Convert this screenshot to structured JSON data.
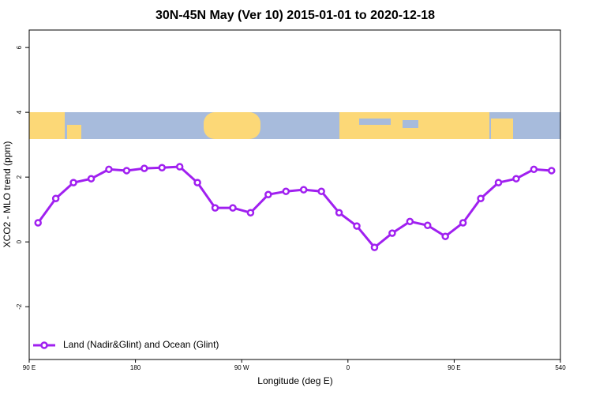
{
  "chart_data": {
    "type": "line",
    "title": "30N-45N May (Ver 10)   2015-01-01 to 2020-12-18",
    "x_label": "Longitude (deg E)",
    "y_label": "XCO2 - MLO trend (ppm)",
    "x": [
      97.5,
      112.5,
      127.5,
      142.5,
      157.5,
      172.5,
      187.5,
      202.5,
      217.5,
      232.5,
      247.5,
      262.5,
      277.5,
      292.5,
      307.5,
      322.5,
      337.5,
      352.5,
      367.5,
      382.5,
      397.5,
      412.5,
      427.5,
      442.5,
      457.5,
      472.5,
      487.5,
      502.5,
      517.5,
      532.5
    ],
    "series": [
      {
        "name": "Land (Nadir&Glint) and Ocean (Glint)",
        "color": "#a020f0",
        "values": [
          0.59,
          1.34,
          1.83,
          1.95,
          2.24,
          2.2,
          2.27,
          2.29,
          2.32,
          1.83,
          1.05,
          1.05,
          0.9,
          1.46,
          1.56,
          1.61,
          1.56,
          0.9,
          0.49,
          -0.17,
          0.27,
          0.63,
          0.51,
          0.17,
          0.59,
          1.34,
          1.83,
          1.95,
          2.24,
          2.2
        ]
      }
    ],
    "xlim": [
      90,
      540
    ],
    "xticks": [
      {
        "value": 90,
        "label": "90 E"
      },
      180,
      {
        "value": 270,
        "label": "90 W"
      },
      {
        "value": 360,
        "label": "0"
      },
      {
        "value": 450,
        "label": "90 E"
      },
      540
    ],
    "ylim": [
      -3.63,
      6.54
    ],
    "yticks": [
      -2,
      0,
      2,
      4,
      6
    ],
    "legend": "bottomleft"
  }
}
